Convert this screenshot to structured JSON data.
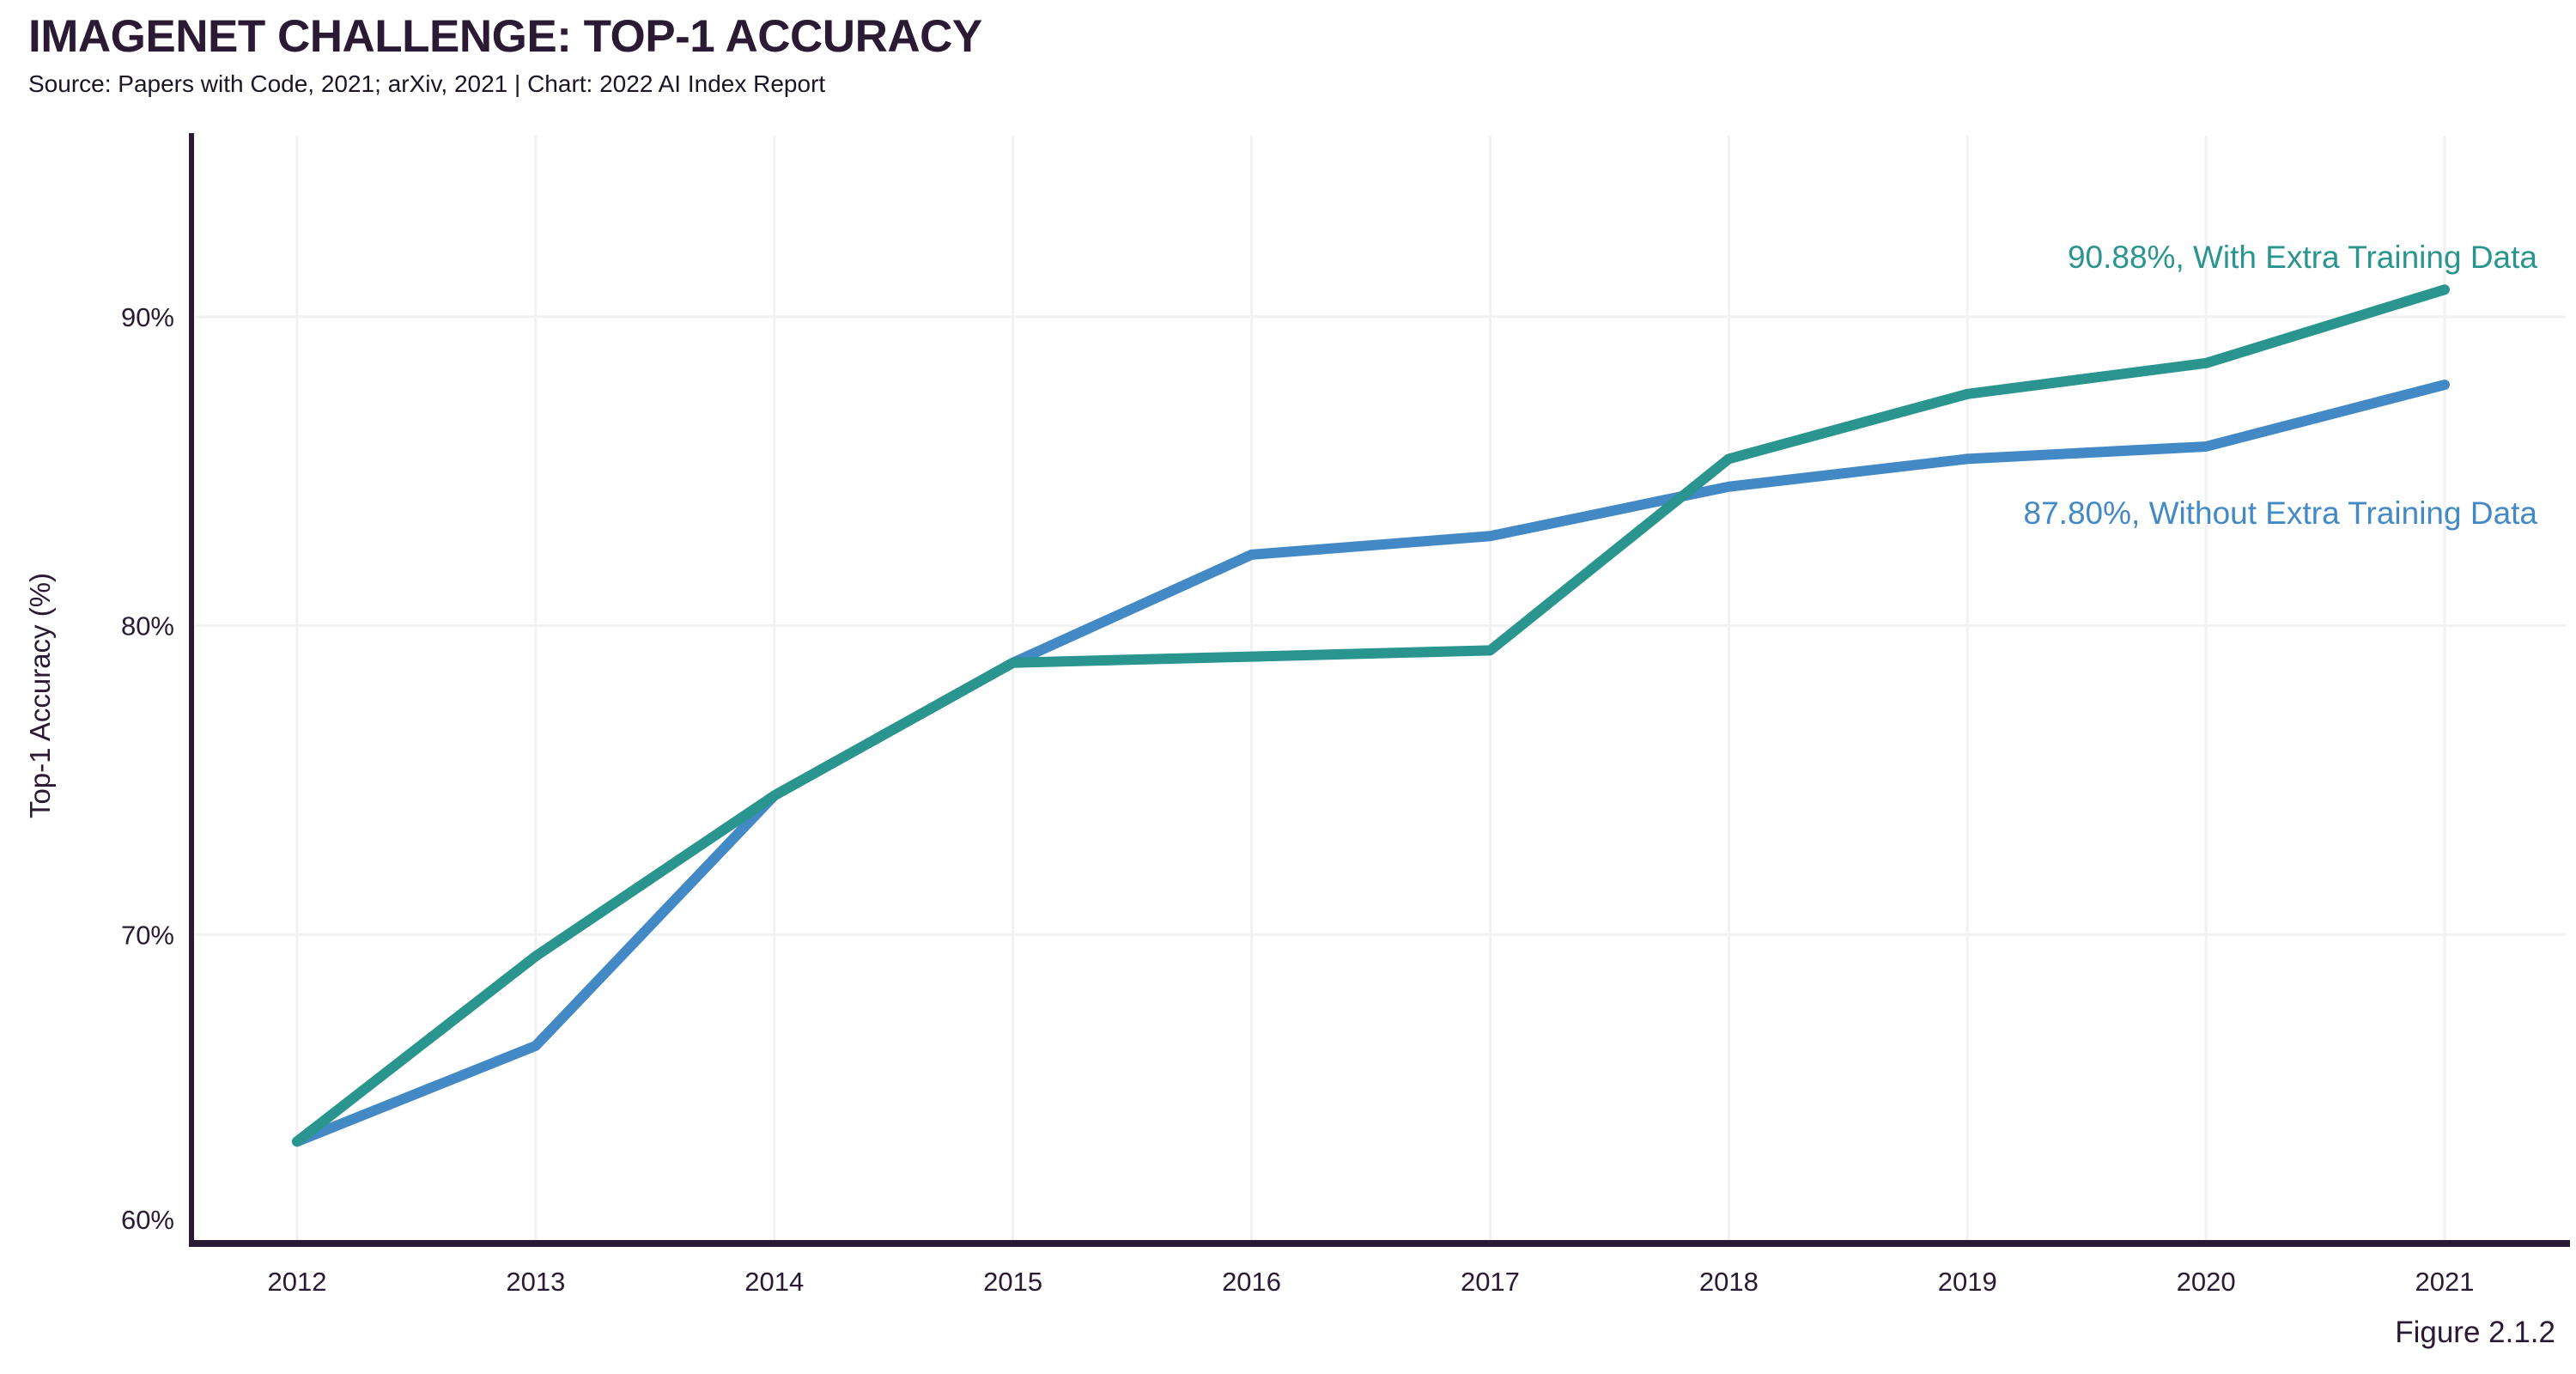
{
  "header": {
    "title": "IMAGENET CHALLENGE: TOP-1 ACCURACY",
    "subtitle": "Source: Papers with Code, 2021; arXiv, 2021 | Chart: 2022 AI Index Report"
  },
  "figure_label": "Figure 2.1.2",
  "colors": {
    "with_extra": "#2a958f",
    "without_extra": "#4289c6",
    "axis": "#2b1a33",
    "text": "#2b1a33",
    "grid": "#f2f2f2",
    "background": "#ffffff"
  },
  "chart_data": {
    "type": "line",
    "title": "ImageNet Challenge: Top-1 Accuracy",
    "xlabel": "",
    "ylabel": "Top-1 Accuracy (%)",
    "x": [
      2012,
      2013,
      2014,
      2015,
      2016,
      2017,
      2018,
      2019,
      2020,
      2021
    ],
    "xtick_labels": [
      "2012",
      "2013",
      "2014",
      "2015",
      "2016",
      "2017",
      "2018",
      "2019",
      "2020",
      "2021"
    ],
    "ytick_values": [
      60,
      70,
      80,
      90
    ],
    "ytick_labels": [
      "60%",
      "70%",
      "80%",
      "90%"
    ],
    "ylim": [
      60,
      96
    ],
    "grid": true,
    "legend_position": "inline-annotations",
    "series": [
      {
        "name": "Without Extra Training Data",
        "color": "#4289c6",
        "values": [
          63.3,
          66.4,
          74.5,
          78.8,
          82.3,
          82.9,
          84.5,
          85.4,
          85.8,
          87.8
        ],
        "final_value_label": "87.80%",
        "annotation": "87.80%, Without Extra Training Data"
      },
      {
        "name": "With Extra Training Data",
        "color": "#2a958f",
        "values": [
          63.3,
          69.3,
          74.5,
          78.8,
          79.0,
          79.2,
          85.4,
          87.5,
          88.5,
          90.88
        ],
        "final_value_label": "90.88%",
        "annotation": "90.88%, With Extra Training Data"
      }
    ]
  }
}
